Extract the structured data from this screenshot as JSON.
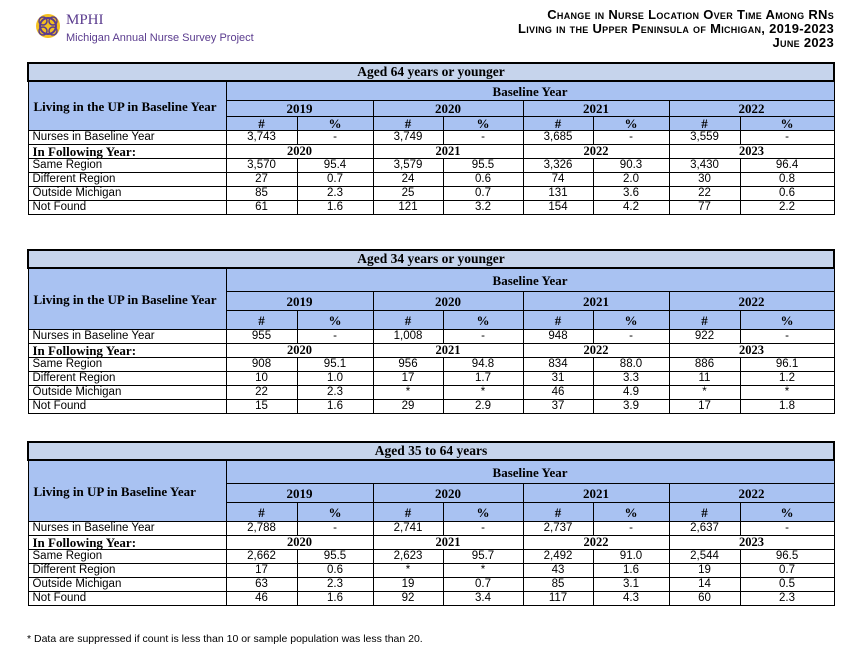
{
  "header": {
    "logo_name": "MPHI",
    "logo_subtitle": "Michigan Annual Nurse Survey Project",
    "title_line1": "Change in Nurse Location Over Time Among RNs",
    "title_line2": "Living in the Upper Peninsula of Michigan, 2019-2023",
    "title_line3": "June 2023"
  },
  "baseline_label": "Baseline Year",
  "following_label": "In Following Year:",
  "baseline_row_label": "Nurses in Baseline Year",
  "hash": "#",
  "pct": "%",
  "row_labels": [
    "Same Region",
    "Different Region",
    "Outside Michigan",
    "Not Found"
  ],
  "baseline_years": [
    "2019",
    "2020",
    "2021",
    "2022"
  ],
  "following_years": [
    "2020",
    "2021",
    "2022",
    "2023"
  ],
  "sections": [
    {
      "title": "Aged 64 years or younger",
      "left_header": "Living in the UP in Baseline Year",
      "baseline": [
        [
          "3,743",
          "-"
        ],
        [
          "3,749",
          "-"
        ],
        [
          "3,685",
          "-"
        ],
        [
          "3,559",
          "-"
        ]
      ],
      "rows": [
        [
          [
            "3,570",
            "95.4"
          ],
          [
            "3,579",
            "95.5"
          ],
          [
            "3,326",
            "90.3"
          ],
          [
            "3,430",
            "96.4"
          ]
        ],
        [
          [
            "27",
            "0.7"
          ],
          [
            "24",
            "0.6"
          ],
          [
            "74",
            "2.0"
          ],
          [
            "30",
            "0.8"
          ]
        ],
        [
          [
            "85",
            "2.3"
          ],
          [
            "25",
            "0.7"
          ],
          [
            "131",
            "3.6"
          ],
          [
            "22",
            "0.6"
          ]
        ],
        [
          [
            "61",
            "1.6"
          ],
          [
            "121",
            "3.2"
          ],
          [
            "154",
            "4.2"
          ],
          [
            "77",
            "2.2"
          ]
        ]
      ]
    },
    {
      "title": "Aged 34 years or younger",
      "left_header": "Living in the UP in Baseline Year",
      "baseline": [
        [
          "955",
          "-"
        ],
        [
          "1,008",
          "-"
        ],
        [
          "948",
          "-"
        ],
        [
          "922",
          "-"
        ]
      ],
      "rows": [
        [
          [
            "908",
            "95.1"
          ],
          [
            "956",
            "94.8"
          ],
          [
            "834",
            "88.0"
          ],
          [
            "886",
            "96.1"
          ]
        ],
        [
          [
            "10",
            "1.0"
          ],
          [
            "17",
            "1.7"
          ],
          [
            "31",
            "3.3"
          ],
          [
            "11",
            "1.2"
          ]
        ],
        [
          [
            "22",
            "2.3"
          ],
          [
            "*",
            "*"
          ],
          [
            "46",
            "4.9"
          ],
          [
            "*",
            "*"
          ]
        ],
        [
          [
            "15",
            "1.6"
          ],
          [
            "29",
            "2.9"
          ],
          [
            "37",
            "3.9"
          ],
          [
            "17",
            "1.8"
          ]
        ]
      ]
    },
    {
      "title": "Aged 35 to 64 years",
      "left_header": "Living in UP in Baseline Year",
      "baseline": [
        [
          "2,788",
          "-"
        ],
        [
          "2,741",
          "-"
        ],
        [
          "2,737",
          "-"
        ],
        [
          "2,637",
          "-"
        ]
      ],
      "rows": [
        [
          [
            "2,662",
            "95.5"
          ],
          [
            "2,623",
            "95.7"
          ],
          [
            "2,492",
            "91.0"
          ],
          [
            "2,544",
            "96.5"
          ]
        ],
        [
          [
            "17",
            "0.6"
          ],
          [
            "*",
            "*"
          ],
          [
            "43",
            "1.6"
          ],
          [
            "19",
            "0.7"
          ]
        ],
        [
          [
            "63",
            "2.3"
          ],
          [
            "19",
            "0.7"
          ],
          [
            "85",
            "3.1"
          ],
          [
            "14",
            "0.5"
          ]
        ],
        [
          [
            "46",
            "1.6"
          ],
          [
            "92",
            "3.4"
          ],
          [
            "117",
            "4.3"
          ],
          [
            "60",
            "2.3"
          ]
        ]
      ]
    }
  ],
  "footnote": "* Data are suppressed if count is less than 10 or sample population was less than 20."
}
